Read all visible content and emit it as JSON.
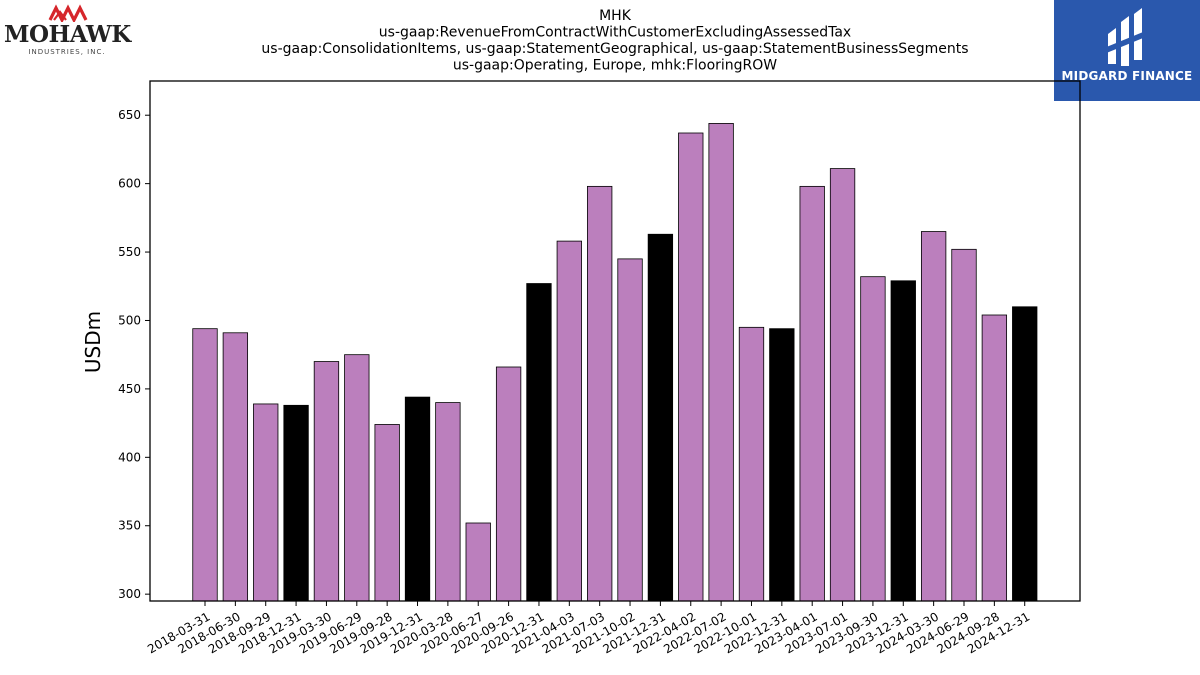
{
  "header": {
    "title_lines": [
      "MHK",
      "us-gaap:RevenueFromContractWithCustomerExcludingAssessedTax",
      "us-gaap:ConsolidationItems, us-gaap:StatementGeographical, us-gaap:StatementBusinessSegments",
      "us-gaap:Operating, Europe, mhk:FlooringROW"
    ]
  },
  "logos": {
    "left": {
      "name": "MOHAWK",
      "subtitle": "INDUSTRIES, INC.",
      "color": "#d6262b"
    },
    "right": {
      "name": "MIDGARD FINANCE",
      "background": "#2a58ad"
    }
  },
  "colors": {
    "quarter_bar": "#bb7fbd",
    "year_end_bar": "#000000",
    "axis": "#000000"
  },
  "chart_data": {
    "type": "bar",
    "ylabel": "USDm",
    "xlabel": "",
    "ylim": [
      295,
      675
    ],
    "yticks": [
      300,
      350,
      400,
      450,
      500,
      550,
      600,
      650
    ],
    "categories": [
      "2018-03-31",
      "2018-06-30",
      "2018-09-29",
      "2018-12-31",
      "2019-03-30",
      "2019-06-29",
      "2019-09-28",
      "2019-12-31",
      "2020-03-28",
      "2020-06-27",
      "2020-09-26",
      "2020-12-31",
      "2021-04-03",
      "2021-07-03",
      "2021-10-02",
      "2021-12-31",
      "2022-04-02",
      "2022-07-02",
      "2022-10-01",
      "2022-12-31",
      "2023-04-01",
      "2023-07-01",
      "2023-09-30",
      "2023-12-31",
      "2024-03-30",
      "2024-06-29",
      "2024-09-28",
      "2024-12-31"
    ],
    "values": [
      494,
      491,
      439,
      438,
      470,
      475,
      424,
      444,
      440,
      352,
      466,
      527,
      558,
      598,
      545,
      563,
      637,
      644,
      495,
      494,
      598,
      611,
      532,
      529,
      565,
      552,
      504,
      510
    ],
    "year_end_flags": [
      false,
      false,
      false,
      true,
      false,
      false,
      false,
      true,
      false,
      false,
      false,
      true,
      false,
      false,
      false,
      true,
      false,
      false,
      false,
      true,
      false,
      false,
      false,
      true,
      false,
      false,
      false,
      true
    ],
    "grid": false,
    "legend": "none"
  }
}
